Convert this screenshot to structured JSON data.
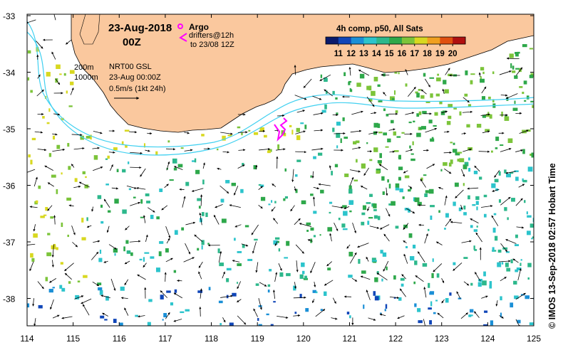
{
  "title": {
    "date": "23-Aug-2018",
    "time": "00Z"
  },
  "legend": {
    "argo_label": "Argo",
    "drifters_line1": "drifters@12h",
    "drifters_line2": "to 23/08 12Z",
    "isobath_200": "200m",
    "isobath_1000": "1000m",
    "product": "NRT00 GSL",
    "product_time": "23-Aug 00:00Z",
    "scale_label": "0.5m/s (1kt 24h)"
  },
  "colorbar": {
    "title": "4h comp, p50, All Sats",
    "ticks": [
      "11",
      "12",
      "13",
      "14",
      "15",
      "16",
      "17",
      "18",
      "19",
      "20"
    ],
    "colors": [
      "#0a1a6b",
      "#1046b8",
      "#1a8fd6",
      "#2cc4cc",
      "#2db88c",
      "#2ea84a",
      "#7cc43a",
      "#d8d820",
      "#f0a020",
      "#e05010",
      "#b01010"
    ]
  },
  "axes": {
    "x_ticks": [
      "114",
      "115",
      "116",
      "117",
      "118",
      "119",
      "120",
      "121",
      "122",
      "123",
      "124",
      "125"
    ],
    "y_ticks": [
      "-33",
      "-34",
      "-35",
      "-36",
      "-37",
      "-38"
    ]
  },
  "credit": "© IMOS 13-Sep-2018 02:57 Hobart Time",
  "colors": {
    "land": "#fac89e",
    "isobath": "#40d0f0",
    "argo": "#ff00ff"
  }
}
